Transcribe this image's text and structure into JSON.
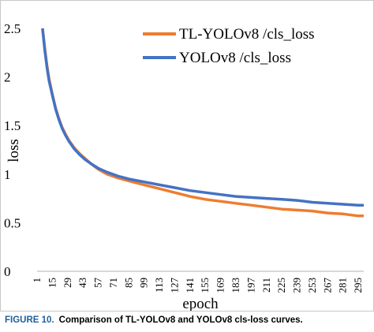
{
  "chart_data": {
    "type": "line",
    "title": "",
    "xlabel": "epoch",
    "ylabel": "loss",
    "xlim": [
      1,
      300
    ],
    "ylim": [
      0,
      2.5
    ],
    "x_ticks": [
      1,
      15,
      29,
      43,
      57,
      71,
      85,
      99,
      113,
      127,
      141,
      155,
      169,
      183,
      197,
      211,
      225,
      239,
      253,
      267,
      281,
      295
    ],
    "y_ticks": [
      0,
      0.5,
      1,
      1.5,
      2,
      2.5
    ],
    "y_tick_labels": [
      "0",
      "0.5",
      "1",
      "1.5",
      "2",
      "2.5"
    ],
    "grid": false,
    "legend_position": "top-right",
    "series": [
      {
        "name": "TL-YOLOv8 /cls_loss",
        "color": "#ed7d31",
        "points": [
          [
            6,
            2.5
          ],
          [
            8,
            2.3
          ],
          [
            10,
            2.12
          ],
          [
            12,
            1.98
          ],
          [
            15,
            1.82
          ],
          [
            18,
            1.68
          ],
          [
            21,
            1.57
          ],
          [
            24,
            1.48
          ],
          [
            27,
            1.41
          ],
          [
            30,
            1.35
          ],
          [
            35,
            1.27
          ],
          [
            40,
            1.21
          ],
          [
            45,
            1.16
          ],
          [
            50,
            1.11
          ],
          [
            57,
            1.05
          ],
          [
            65,
            1.0
          ],
          [
            75,
            0.96
          ],
          [
            85,
            0.93
          ],
          [
            99,
            0.89
          ],
          [
            113,
            0.85
          ],
          [
            127,
            0.81
          ],
          [
            141,
            0.77
          ],
          [
            155,
            0.74
          ],
          [
            169,
            0.72
          ],
          [
            183,
            0.7
          ],
          [
            197,
            0.68
          ],
          [
            211,
            0.66
          ],
          [
            225,
            0.64
          ],
          [
            239,
            0.63
          ],
          [
            253,
            0.62
          ],
          [
            267,
            0.6
          ],
          [
            281,
            0.59
          ],
          [
            295,
            0.57
          ],
          [
            300,
            0.57
          ]
        ]
      },
      {
        "name": "YOLOv8 /cls_loss",
        "color": "#4472c4",
        "points": [
          [
            6,
            2.5
          ],
          [
            8,
            2.28
          ],
          [
            10,
            2.1
          ],
          [
            12,
            1.96
          ],
          [
            15,
            1.81
          ],
          [
            18,
            1.67
          ],
          [
            21,
            1.56
          ],
          [
            24,
            1.47
          ],
          [
            27,
            1.4
          ],
          [
            30,
            1.34
          ],
          [
            35,
            1.26
          ],
          [
            40,
            1.2
          ],
          [
            45,
            1.15
          ],
          [
            50,
            1.11
          ],
          [
            57,
            1.06
          ],
          [
            65,
            1.02
          ],
          [
            75,
            0.98
          ],
          [
            85,
            0.95
          ],
          [
            99,
            0.92
          ],
          [
            113,
            0.89
          ],
          [
            127,
            0.86
          ],
          [
            141,
            0.83
          ],
          [
            155,
            0.81
          ],
          [
            169,
            0.79
          ],
          [
            183,
            0.77
          ],
          [
            197,
            0.76
          ],
          [
            211,
            0.75
          ],
          [
            225,
            0.74
          ],
          [
            239,
            0.73
          ],
          [
            253,
            0.71
          ],
          [
            267,
            0.7
          ],
          [
            281,
            0.69
          ],
          [
            295,
            0.68
          ],
          [
            300,
            0.68
          ]
        ]
      }
    ]
  },
  "caption": {
    "label": "FIGURE 10.",
    "text": "Comparison of TL-YOLOv8 and YOLOv8 cls-loss curves."
  }
}
